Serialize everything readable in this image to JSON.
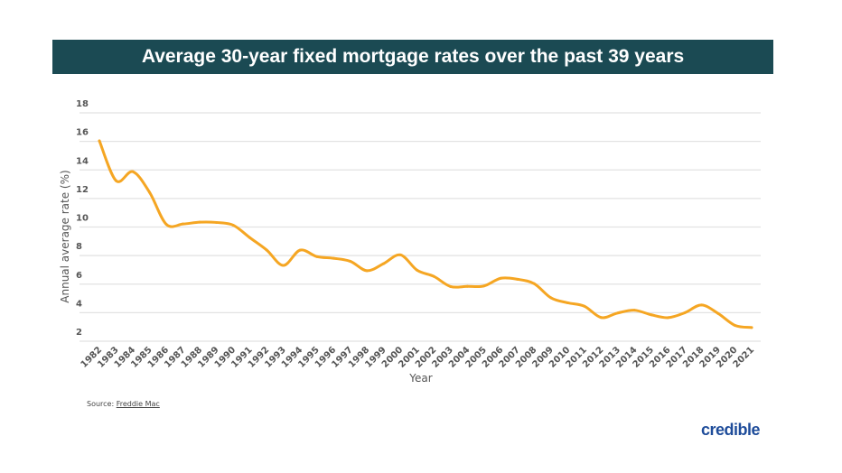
{
  "chart_data": {
    "type": "line",
    "title": "Average 30-year fixed mortgage rates over the past 39 years",
    "xlabel": "Year",
    "ylabel": "Annual average rate (%)",
    "ylim": [
      2,
      18
    ],
    "yticks": [
      2,
      4,
      6,
      8,
      10,
      12,
      14,
      16,
      18
    ],
    "grid": true,
    "line_color": "#f5a623",
    "x": [
      1982,
      1983,
      1984,
      1985,
      1986,
      1987,
      1988,
      1989,
      1990,
      1991,
      1992,
      1993,
      1994,
      1995,
      1996,
      1997,
      1998,
      1999,
      2000,
      2001,
      2002,
      2003,
      2004,
      2005,
      2006,
      2007,
      2008,
      2009,
      2010,
      2011,
      2012,
      2013,
      2014,
      2015,
      2016,
      2017,
      2018,
      2019,
      2020,
      2021
    ],
    "series": [
      {
        "values": [
          16.04,
          13.24,
          13.88,
          12.43,
          10.19,
          10.21,
          10.34,
          10.32,
          10.13,
          9.25,
          8.39,
          7.31,
          8.38,
          7.93,
          7.81,
          7.6,
          6.94,
          7.44,
          8.05,
          6.97,
          6.54,
          5.83,
          5.84,
          5.87,
          6.41,
          6.34,
          6.03,
          5.04,
          4.69,
          4.45,
          3.66,
          3.98,
          4.17,
          3.85,
          3.65,
          3.99,
          4.54,
          3.94,
          3.11,
          2.96
        ]
      }
    ]
  },
  "source": {
    "label": "Source:",
    "link": "Freddie Mac"
  },
  "logo": "credible",
  "colors": {
    "banner": "#1b4a53",
    "logo": "#1e4c9a"
  }
}
